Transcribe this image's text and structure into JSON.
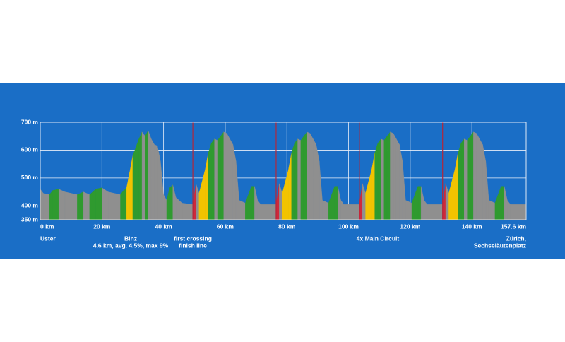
{
  "chart_data": {
    "type": "area",
    "x": [
      0,
      1,
      3,
      4,
      6,
      8,
      10,
      12,
      14,
      16,
      18,
      20,
      22,
      24,
      26,
      27,
      28,
      29,
      30,
      31,
      32,
      33,
      34,
      35,
      36,
      37,
      38,
      39,
      40,
      41,
      42,
      43,
      44,
      46,
      49.5,
      50.5,
      51.5,
      53.5,
      54.5,
      55.5,
      56.5,
      57.5,
      58.5,
      59.5,
      60.5,
      61.5,
      62.5,
      63.5,
      64.5,
      66.5,
      68.5,
      69.5,
      70.5,
      71.5,
      76.5,
      77.5,
      78.5,
      80.5,
      81.5,
      82.5,
      83.5,
      84.5,
      85.5,
      86.5,
      87.5,
      88.5,
      89.5,
      90.5,
      91.5,
      93.5,
      95.5,
      96.5,
      97.5,
      98.5,
      103.5,
      104.5,
      105.5,
      107.5,
      108.5,
      109.5,
      110.5,
      111.5,
      112.5,
      113.5,
      114.5,
      115.5,
      116.5,
      117.5,
      118.5,
      120.5,
      122.5,
      123.5,
      124.5,
      125.5,
      130.5,
      131.5,
      132.5,
      134.5,
      135.5,
      136.5,
      137.5,
      138.5,
      139.5,
      140.5,
      141.5,
      142.5,
      143.5,
      144.5,
      145.5,
      147.5,
      149.5,
      150.5,
      151.5,
      152.5,
      157.6
    ],
    "values": [
      460,
      445,
      440,
      455,
      460,
      450,
      445,
      440,
      450,
      440,
      460,
      465,
      450,
      445,
      440,
      455,
      465,
      520,
      580,
      610,
      640,
      665,
      650,
      670,
      640,
      620,
      615,
      560,
      440,
      420,
      465,
      475,
      430,
      410,
      405,
      480,
      445,
      530,
      590,
      625,
      640,
      635,
      650,
      665,
      660,
      640,
      620,
      560,
      420,
      410,
      470,
      470,
      420,
      405,
      405,
      480,
      445,
      530,
      590,
      625,
      640,
      635,
      650,
      665,
      660,
      640,
      620,
      560,
      420,
      410,
      470,
      470,
      420,
      405,
      405,
      480,
      445,
      530,
      590,
      625,
      640,
      635,
      650,
      665,
      660,
      640,
      620,
      560,
      420,
      410,
      470,
      470,
      420,
      405,
      405,
      480,
      445,
      530,
      590,
      625,
      640,
      635,
      650,
      665,
      660,
      640,
      620,
      560,
      420,
      410,
      470,
      470,
      420,
      405,
      405
    ],
    "segment_colors": [
      "#8f8f8f",
      "#8f8f8f",
      "#2f9a2f",
      "#2f9a2f",
      "#8f8f8f",
      "#8f8f8f",
      "#8f8f8f",
      "#2f9a2f",
      "#8f8f8f",
      "#2f9a2f",
      "#2f9a2f",
      "#8f8f8f",
      "#8f8f8f",
      "#8f8f8f",
      "#2f9a2f",
      "#2f9a2f",
      "#f2c300",
      "#f2c300",
      "#2f9a2f",
      "#2f9a2f",
      "#2f9a2f",
      "#8f8f8f",
      "#2f9a2f",
      "#8f8f8f",
      "#8f8f8f",
      "#8f8f8f",
      "#8f8f8f",
      "#8f8f8f",
      "#8f8f8f",
      "#2f9a2f",
      "#2f9a2f",
      "#8f8f8f",
      "#8f8f8f",
      "#8f8f8f",
      "#d0283a",
      "#8f8f8f",
      "#f2c300",
      "#f2c300",
      "#2f9a2f",
      "#2f9a2f",
      "#8f8f8f",
      "#2f9a2f",
      "#2f9a2f",
      "#8f8f8f",
      "#8f8f8f",
      "#8f8f8f",
      "#8f8f8f",
      "#8f8f8f",
      "#8f8f8f",
      "#2f9a2f",
      "#2f9a2f",
      "#8f8f8f",
      "#8f8f8f",
      "#8f8f8f",
      "#d0283a",
      "#8f8f8f",
      "#f2c300",
      "#f2c300",
      "#2f9a2f",
      "#2f9a2f",
      "#8f8f8f",
      "#2f9a2f",
      "#2f9a2f",
      "#8f8f8f",
      "#8f8f8f",
      "#8f8f8f",
      "#8f8f8f",
      "#8f8f8f",
      "#8f8f8f",
      "#2f9a2f",
      "#2f9a2f",
      "#8f8f8f",
      "#8f8f8f",
      "#8f8f8f",
      "#d0283a",
      "#8f8f8f",
      "#f2c300",
      "#f2c300",
      "#2f9a2f",
      "#2f9a2f",
      "#8f8f8f",
      "#2f9a2f",
      "#2f9a2f",
      "#8f8f8f",
      "#8f8f8f",
      "#8f8f8f",
      "#8f8f8f",
      "#8f8f8f",
      "#8f8f8f",
      "#2f9a2f",
      "#2f9a2f",
      "#8f8f8f",
      "#8f8f8f",
      "#8f8f8f",
      "#d0283a",
      "#8f8f8f",
      "#f2c300",
      "#f2c300",
      "#2f9a2f",
      "#2f9a2f",
      "#8f8f8f",
      "#2f9a2f",
      "#2f9a2f",
      "#8f8f8f",
      "#8f8f8f",
      "#8f8f8f",
      "#8f8f8f",
      "#8f8f8f",
      "#8f8f8f",
      "#2f9a2f",
      "#2f9a2f",
      "#8f8f8f",
      "#8f8f8f",
      "#8f8f8f"
    ],
    "finish_crossings": [
      49.5,
      76.5,
      103.5,
      130.5
    ],
    "finish_color": "#b3263a",
    "xlim": [
      0,
      157.6
    ],
    "xticks": [
      {
        "value": 0,
        "label": "0 km"
      },
      {
        "value": 20,
        "label": "20 km"
      },
      {
        "value": 40,
        "label": "40 km"
      },
      {
        "value": 60,
        "label": "60 km"
      },
      {
        "value": 80,
        "label": "80 km"
      },
      {
        "value": 100,
        "label": "100 km"
      },
      {
        "value": 120,
        "label": "120 km"
      },
      {
        "value": 140,
        "label": "140 km"
      },
      {
        "value": 157.6,
        "label": "157.6 km"
      }
    ],
    "ylim": [
      350,
      700
    ],
    "yticks": [
      {
        "value": 350,
        "label": "350 m"
      },
      {
        "value": 400,
        "label": "400 m"
      },
      {
        "value": 500,
        "label": "500 m"
      },
      {
        "value": 600,
        "label": "600 m"
      },
      {
        "value": 700,
        "label": "700 m"
      }
    ],
    "grid": true,
    "annotations": [
      [
        "Uster"
      ],
      [
        "Binz",
        "4.6 km, avg. 4.5%, max 9%"
      ],
      [
        "first crossing",
        "finish line"
      ],
      [
        "4x Main Circuit"
      ],
      [
        "Zürich,",
        "Sechseläutenplatz"
      ]
    ]
  }
}
